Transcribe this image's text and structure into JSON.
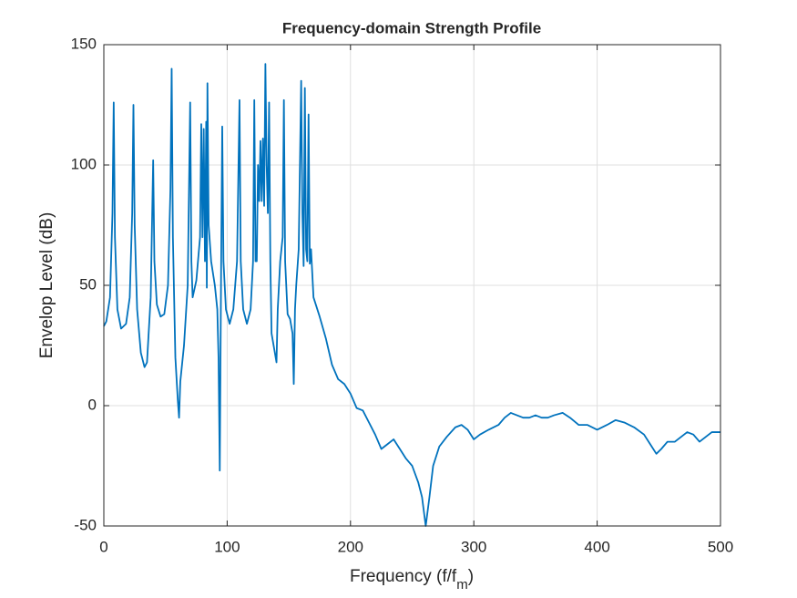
{
  "chart_data": {
    "type": "line",
    "title": "Frequency-domain Strength Profile",
    "xlabel": "Frequency (f/f",
    "xlabel_subscript": "m",
    "xlabel_suffix": ")",
    "ylabel": "Envelop Level (dB)",
    "xlim": [
      0,
      500
    ],
    "ylim": [
      -50,
      150
    ],
    "xticks": [
      0,
      100,
      200,
      300,
      400,
      500
    ],
    "yticks": [
      -50,
      0,
      50,
      100,
      150
    ],
    "grid": true,
    "x": [
      0,
      2,
      5,
      7,
      8,
      9,
      11,
      14,
      18,
      21,
      23,
      24,
      25,
      27,
      30,
      33,
      35,
      38,
      40,
      41,
      43,
      46,
      49,
      52,
      54,
      55,
      56,
      58,
      60,
      61,
      62,
      65,
      68,
      70,
      71,
      72,
      75,
      78,
      79,
      80,
      81,
      82,
      83,
      83.5,
      84,
      85,
      87,
      90,
      92,
      93,
      94,
      95,
      96,
      97,
      99,
      102,
      105,
      108,
      110,
      111,
      113,
      116,
      119,
      121,
      122,
      123,
      124,
      125,
      126,
      127,
      128,
      129,
      130,
      131,
      132,
      133,
      134,
      135,
      136,
      138,
      140,
      141,
      143,
      145,
      146,
      147,
      149,
      151,
      153,
      154,
      155,
      156,
      158,
      160,
      161,
      162,
      163,
      164,
      165,
      166,
      167,
      168,
      169,
      170,
      175,
      180,
      185,
      190,
      195,
      200,
      205,
      210,
      215,
      220,
      225,
      230,
      235,
      240,
      245,
      250,
      255,
      258,
      261,
      264,
      267,
      272,
      278,
      285,
      290,
      295,
      300,
      305,
      312,
      320,
      325,
      330,
      335,
      340,
      345,
      350,
      355,
      360,
      365,
      372,
      378,
      385,
      392,
      400,
      408,
      415,
      422,
      430,
      438,
      443,
      448,
      452,
      457,
      463,
      468,
      473,
      478,
      483,
      488,
      493,
      500
    ],
    "series": [
      {
        "color": "#0072bd",
        "values": [
          33,
          35,
          45,
          80,
          126,
          70,
          40,
          32,
          34,
          45,
          80,
          125,
          75,
          40,
          22,
          16,
          18,
          45,
          102,
          60,
          42,
          37,
          38,
          50,
          90,
          140,
          70,
          20,
          2,
          -5,
          10,
          25,
          50,
          126,
          60,
          45,
          52,
          70,
          117,
          70,
          115,
          60,
          118,
          49,
          134,
          75,
          60,
          50,
          40,
          20,
          -27,
          50,
          116,
          60,
          40,
          34,
          40,
          60,
          127,
          60,
          40,
          34,
          40,
          60,
          127,
          60,
          60,
          100,
          85,
          110,
          85,
          111,
          83,
          142,
          100,
          80,
          126,
          60,
          30,
          24,
          18,
          40,
          60,
          70,
          127,
          60,
          38,
          36,
          30,
          9,
          40,
          50,
          65,
          135,
          80,
          58,
          132,
          65,
          60,
          121,
          59,
          65,
          55,
          45,
          37,
          28,
          17,
          11,
          9,
          5,
          -1,
          -2,
          -7,
          -12,
          -18,
          -16,
          -14,
          -18,
          -22,
          -25,
          -32,
          -38,
          -50,
          -38,
          -25,
          -17,
          -13,
          -9,
          -8,
          -10,
          -14,
          -12,
          -10,
          -8,
          -5,
          -3,
          -4,
          -5,
          -5,
          -4,
          -5,
          -5,
          -4,
          -3,
          -5,
          -8,
          -8,
          -10,
          -8,
          -6,
          -7,
          -9,
          -12,
          -16,
          -20,
          -18,
          -15,
          -15,
          -13,
          -11,
          -12,
          -15,
          -13,
          -11,
          -11
        ]
      }
    ]
  }
}
